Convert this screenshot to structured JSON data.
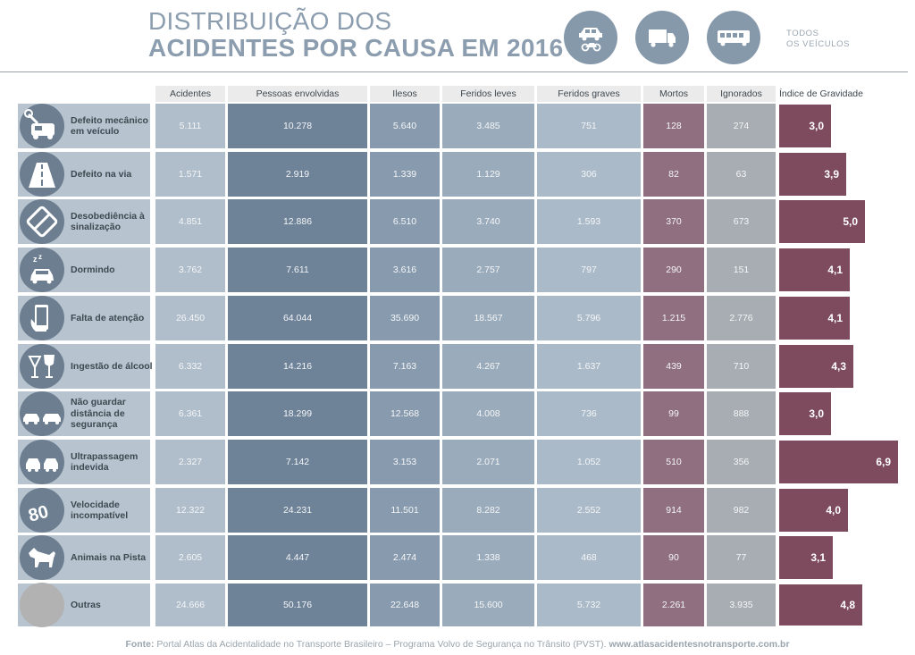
{
  "title": {
    "line1": "DISTRIBUIÇÃO DOS",
    "line2": "ACIDENTES POR CAUSA EM 2016"
  },
  "filters": [
    {
      "name": "car-motorcycle",
      "icon": "car-motorcycle-icon"
    },
    {
      "name": "truck",
      "icon": "truck-icon"
    },
    {
      "name": "bus",
      "icon": "bus-icon"
    }
  ],
  "filter_label": {
    "line1": "TODOS",
    "line2": "OS VEÍCULOS"
  },
  "colors": {
    "title": "#8b9dae",
    "icon_circle": "#6c7e90",
    "deaths": "#8f6f80",
    "severity_bar": "#7d4b5d"
  },
  "chart_data": {
    "type": "table",
    "columns": [
      "Acidentes",
      "Pessoas envolvidas",
      "Ilesos",
      "Feridos leves",
      "Feridos graves",
      "Mortos",
      "Ignorados"
    ],
    "severity_header": "Índice de Gravidade",
    "rows": [
      {
        "cause": "Defeito mecânico em veículo",
        "icon": "car-wrench-icon",
        "values": [
          "5.111",
          "10.278",
          "5.640",
          "3.485",
          "751",
          "128",
          "274"
        ],
        "severity": 3.0,
        "severity_label": "3,0"
      },
      {
        "cause": "Defeito na via",
        "icon": "road-icon",
        "values": [
          "1.571",
          "2.919",
          "1.339",
          "1.129",
          "306",
          "82",
          "63"
        ],
        "severity": 3.9,
        "severity_label": "3,9"
      },
      {
        "cause": "Desobediência à sinalização",
        "icon": "no-entry-sign-icon",
        "values": [
          "4.851",
          "12.886",
          "6.510",
          "3.740",
          "1.593",
          "370",
          "673"
        ],
        "severity": 5.0,
        "severity_label": "5,0"
      },
      {
        "cause": "Dormindo",
        "icon": "sleeping-car-icon",
        "values": [
          "3.762",
          "7.611",
          "3.616",
          "2.757",
          "797",
          "290",
          "151"
        ],
        "severity": 4.1,
        "severity_label": "4,1"
      },
      {
        "cause": "Falta de atenção",
        "icon": "phone-hand-icon",
        "values": [
          "26.450",
          "64.044",
          "35.690",
          "18.567",
          "5.796",
          "1.215",
          "2.776"
        ],
        "severity": 4.1,
        "severity_label": "4,1"
      },
      {
        "cause": "Ingestão de álcool",
        "icon": "wine-glasses-icon",
        "values": [
          "6.332",
          "14.216",
          "7.163",
          "4.267",
          "1.637",
          "439",
          "710"
        ],
        "severity": 4.3,
        "severity_label": "4,3"
      },
      {
        "cause": "Não guardar distância de segurança",
        "icon": "cars-following-icon",
        "values": [
          "6.361",
          "18.299",
          "12.568",
          "4.008",
          "736",
          "99",
          "888"
        ],
        "severity": 3.0,
        "severity_label": "3,0"
      },
      {
        "cause": "Ultrapassagem indevida",
        "icon": "cars-overtaking-icon",
        "values": [
          "2.327",
          "7.142",
          "3.153",
          "2.071",
          "1.052",
          "510",
          "356"
        ],
        "severity": 6.9,
        "severity_label": "6,9"
      },
      {
        "cause": "Velocidade incompatível",
        "icon": "speed-80-icon",
        "values": [
          "12.322",
          "24.231",
          "11.501",
          "8.282",
          "2.552",
          "914",
          "982"
        ],
        "severity": 4.0,
        "severity_label": "4,0"
      },
      {
        "cause": "Animais na Pista",
        "icon": "dog-icon",
        "values": [
          "2.605",
          "4.447",
          "2.474",
          "1.338",
          "468",
          "90",
          "77"
        ],
        "severity": 3.1,
        "severity_label": "3,1"
      },
      {
        "cause": "Outras",
        "icon": "",
        "values": [
          "24.666",
          "50.176",
          "22.648",
          "15.600",
          "5.732",
          "2.261",
          "3.935"
        ],
        "severity": 4.8,
        "severity_label": "4,8"
      }
    ]
  },
  "footer": {
    "prefix": "Fonte:",
    "text": " Portal Atlas da Acidentalidade no Transporte Brasileiro – Programa Volvo de Segurança no Trânsito (PVST). ",
    "url": "www.atlasacidentesnotransporte.com.br"
  }
}
